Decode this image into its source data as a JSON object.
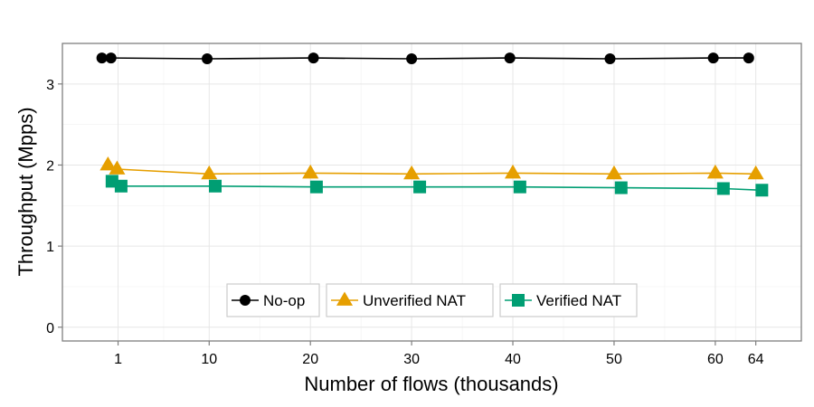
{
  "chart_data": {
    "type": "line",
    "xlabel": "Number of flows (thousands)",
    "ylabel": "Throughput (Mpps)",
    "xlim": [
      -4.5,
      68.5
    ],
    "ylim": [
      -0.17,
      3.5
    ],
    "xticks": [
      1,
      10,
      20,
      30,
      40,
      50,
      60,
      64
    ],
    "xtick_labels": [
      "1",
      "10",
      "20",
      "30",
      "40",
      "50",
      "60",
      "64"
    ],
    "yticks": [
      0,
      1,
      2,
      3
    ],
    "ytick_labels": [
      "0",
      "1",
      "2",
      "3"
    ],
    "grid": true,
    "legend_position": "bottom-center",
    "series": [
      {
        "name": "No-op",
        "marker": "circle",
        "color": "#000000",
        "x": [
          -0.6,
          0.3,
          9.8,
          20.3,
          30.0,
          39.7,
          49.6,
          59.8,
          63.3
        ],
        "y": [
          3.32,
          3.32,
          3.31,
          3.32,
          3.31,
          3.32,
          3.31,
          3.32,
          3.32
        ]
      },
      {
        "name": "Unverified NAT",
        "marker": "triangle",
        "color": "#E69F00",
        "x": [
          0.0,
          0.9,
          10.0,
          20.0,
          30.0,
          40.0,
          50.0,
          60.0,
          64.0
        ],
        "y": [
          2.0,
          1.95,
          1.89,
          1.9,
          1.89,
          1.9,
          1.89,
          1.9,
          1.89
        ]
      },
      {
        "name": "Verified NAT",
        "marker": "square",
        "color": "#009E73",
        "x": [
          0.4,
          1.3,
          10.6,
          20.6,
          30.8,
          40.7,
          50.7,
          60.8,
          64.6
        ],
        "y": [
          1.8,
          1.74,
          1.74,
          1.73,
          1.73,
          1.73,
          1.72,
          1.71,
          1.69
        ]
      }
    ]
  }
}
